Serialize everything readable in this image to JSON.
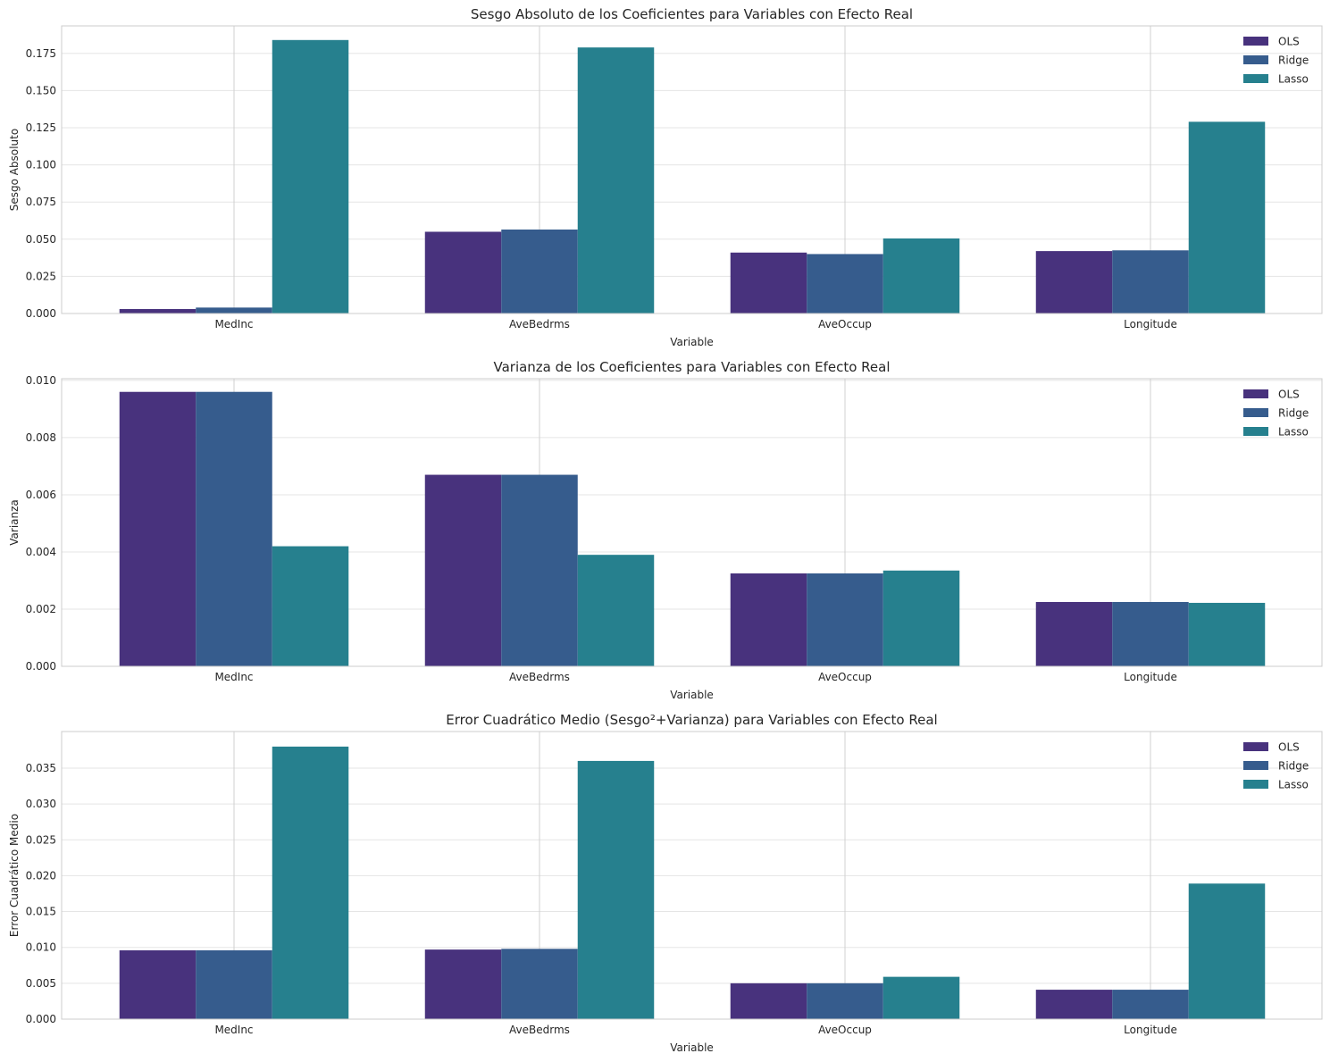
{
  "colors": {
    "OLS": "#48327d",
    "Ridge": "#365c8d",
    "Lasso": "#26808e",
    "grid": "#e5e5e5",
    "spine": "#cccccc",
    "text": "#262626"
  },
  "chart_data": [
    {
      "type": "bar",
      "title": "Sesgo Absoluto de los Coeficientes para Variables con Efecto Real",
      "xlabel": "Variable",
      "ylabel": "Sesgo Absoluto",
      "categories": [
        "MedInc",
        "AveBedrms",
        "AveOccup",
        "Longitude"
      ],
      "ylim": [
        0,
        0.1935
      ],
      "yticks": [
        0.0,
        0.025,
        0.05,
        0.075,
        0.1,
        0.125,
        0.15,
        0.175
      ],
      "ytick_labels": [
        "0.000",
        "0.025",
        "0.050",
        "0.075",
        "0.100",
        "0.125",
        "0.150",
        "0.175"
      ],
      "legend_position": "top-right",
      "series": [
        {
          "name": "OLS",
          "values": [
            0.003,
            0.055,
            0.041,
            0.042
          ]
        },
        {
          "name": "Ridge",
          "values": [
            0.004,
            0.0565,
            0.04,
            0.0425
          ]
        },
        {
          "name": "Lasso",
          "values": [
            0.184,
            0.179,
            0.0505,
            0.129
          ]
        }
      ]
    },
    {
      "type": "bar",
      "title": "Varianza de los Coeficientes para Variables con Efecto Real",
      "xlabel": "Variable",
      "ylabel": "Varianza",
      "categories": [
        "MedInc",
        "AveBedrms",
        "AveOccup",
        "Longitude"
      ],
      "ylim": [
        0,
        0.01006
      ],
      "yticks": [
        0.0,
        0.002,
        0.004,
        0.006,
        0.008,
        0.01
      ],
      "ytick_labels": [
        "0.000",
        "0.002",
        "0.004",
        "0.006",
        "0.008",
        "0.010"
      ],
      "legend_position": "top-right",
      "series": [
        {
          "name": "OLS",
          "values": [
            0.0096,
            0.0067,
            0.00325,
            0.00225
          ]
        },
        {
          "name": "Ridge",
          "values": [
            0.0096,
            0.0067,
            0.00325,
            0.00225
          ]
        },
        {
          "name": "Lasso",
          "values": [
            0.0042,
            0.0039,
            0.00335,
            0.00222
          ]
        }
      ]
    },
    {
      "type": "bar",
      "title": "Error Cuadrático Medio (Sesgo²+Varianza) para Variables con Efecto Real",
      "xlabel": "Variable",
      "ylabel": "Error Cuadrático Medio",
      "categories": [
        "MedInc",
        "AveBedrms",
        "AveOccup",
        "Longitude"
      ],
      "ylim": [
        0,
        0.0401
      ],
      "yticks": [
        0.0,
        0.005,
        0.01,
        0.015,
        0.02,
        0.025,
        0.03,
        0.035
      ],
      "ytick_labels": [
        "0.000",
        "0.005",
        "0.010",
        "0.015",
        "0.020",
        "0.025",
        "0.030",
        "0.035"
      ],
      "legend_position": "top-right",
      "series": [
        {
          "name": "OLS",
          "values": [
            0.0096,
            0.0097,
            0.005,
            0.0041
          ]
        },
        {
          "name": "Ridge",
          "values": [
            0.0096,
            0.0098,
            0.005,
            0.0041
          ]
        },
        {
          "name": "Lasso",
          "values": [
            0.038,
            0.036,
            0.0059,
            0.0189
          ]
        }
      ]
    }
  ]
}
